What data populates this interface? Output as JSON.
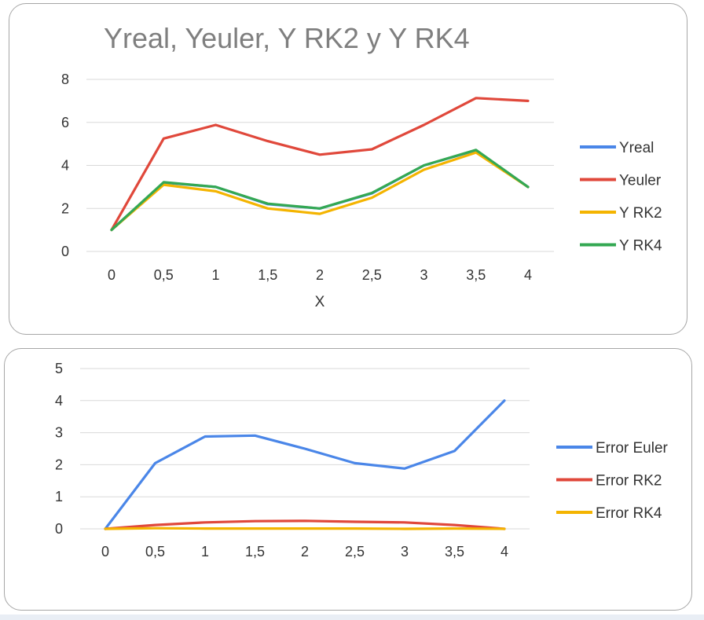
{
  "chart_data": [
    {
      "type": "line",
      "title": "Yreal, Yeuler, Y RK2 y Y RK4",
      "xlabel": "X",
      "ylabel": "",
      "categories": [
        "0",
        "0,5",
        "1",
        "1,5",
        "2",
        "2,5",
        "3",
        "3,5",
        "4"
      ],
      "y_ticks": [
        "0",
        "2",
        "4",
        "6",
        "8"
      ],
      "ylim": [
        0,
        8
      ],
      "grid": true,
      "legend_position": "right",
      "series": [
        {
          "name": "Yreal",
          "color": "#4a86e8",
          "values": [
            1,
            3.2,
            3.0,
            2.2,
            2.0,
            2.7,
            4.0,
            4.7,
            3.0
          ]
        },
        {
          "name": "Yeuler",
          "color": "#e0483b",
          "values": [
            1,
            5.25,
            5.88,
            5.13,
            4.5,
            4.75,
            5.88,
            7.13,
            7.0
          ]
        },
        {
          "name": "Y RK2",
          "color": "#f4b400",
          "values": [
            1,
            3.1,
            2.8,
            2.0,
            1.75,
            2.5,
            3.8,
            4.6,
            3.0
          ]
        },
        {
          "name": "Y RK4",
          "color": "#34a853",
          "values": [
            1,
            3.22,
            3.0,
            2.22,
            2.0,
            2.72,
            4.0,
            4.72,
            3.0
          ]
        }
      ]
    },
    {
      "type": "line",
      "title": "",
      "xlabel": "",
      "ylabel": "",
      "categories": [
        "0",
        "0,5",
        "1",
        "1,5",
        "2",
        "2,5",
        "3",
        "3,5",
        "4"
      ],
      "y_ticks": [
        "0",
        "1",
        "2",
        "3",
        "4",
        "5"
      ],
      "ylim": [
        0,
        5
      ],
      "grid": true,
      "legend_position": "right",
      "series": [
        {
          "name": "Error Euler",
          "color": "#4a86e8",
          "values": [
            0,
            2.05,
            2.88,
            2.91,
            2.5,
            2.05,
            1.88,
            2.43,
            4.0
          ]
        },
        {
          "name": "Error RK2",
          "color": "#e0483b",
          "values": [
            0,
            0.12,
            0.2,
            0.24,
            0.25,
            0.22,
            0.2,
            0.12,
            0.0
          ]
        },
        {
          "name": "Error RK4",
          "color": "#f4b400",
          "values": [
            0,
            0.02,
            0.01,
            0.01,
            0.01,
            0.01,
            0.0,
            0.01,
            0.0
          ]
        }
      ]
    }
  ],
  "colors": {
    "bottom_strip": "#e9eef5"
  }
}
